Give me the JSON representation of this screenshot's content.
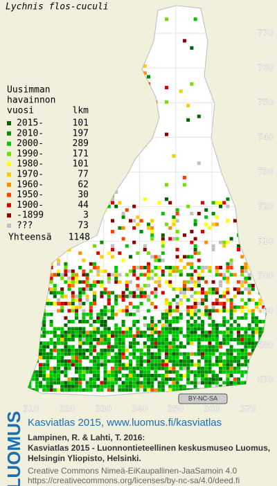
{
  "title": "Lychnis flos-cuculi",
  "legend": {
    "heading": [
      "Uusimman",
      "havainnon"
    ],
    "year_header": "vuosi",
    "count_header": "lkm",
    "items": [
      {
        "label": "2015-",
        "count": 101,
        "color": "#006400"
      },
      {
        "label": "2010-",
        "count": 197,
        "color": "#009000"
      },
      {
        "label": "2000-",
        "count": 289,
        "color": "#00c800"
      },
      {
        "label": "1990-",
        "count": 171,
        "color": "#70e000"
      },
      {
        "label": "1980-",
        "count": 101,
        "color": "#ffff00"
      },
      {
        "label": "1970-",
        "count": 77,
        "color": "#ffcc00"
      },
      {
        "label": "1960-",
        "count": 62,
        "color": "#ff8c00"
      },
      {
        "label": "1950-",
        "count": 30,
        "color": "#ff4000"
      },
      {
        "label": "1900-",
        "count": 44,
        "color": "#dd0000"
      },
      {
        "label": "-1899",
        "count": 3,
        "color": "#8b0000"
      },
      {
        "label": "???",
        "count": 73,
        "color": "#c0c0c0"
      }
    ],
    "total_label": "Yhteensä",
    "total": 1148
  },
  "grid": {
    "yticks": [
      770,
      760,
      750,
      740,
      730,
      720,
      710,
      700,
      690,
      680,
      670
    ],
    "xticks": [
      310,
      320,
      330,
      340,
      350,
      360,
      370
    ]
  },
  "license_badge": "BY-NC-SA",
  "footer": {
    "logo": "LUOMUS",
    "atlas": "Kasviatlas 2015, www.luomus.fi/kasviatlas",
    "citation": [
      "Lampinen, R. & Lahti, T. 2016:",
      "Kasviatlas 2015 - Luonnontieteellinen keskusmuseo Luomus,",
      "Helsingin Yliopisto, Helsinki."
    ],
    "license": [
      "Creative Commons Nimeä-EiKaupallinen-JaaSamoin 4.0",
      "https://creativecommons.org/licenses/by-nc-sa/4.0/deed.fi"
    ]
  }
}
